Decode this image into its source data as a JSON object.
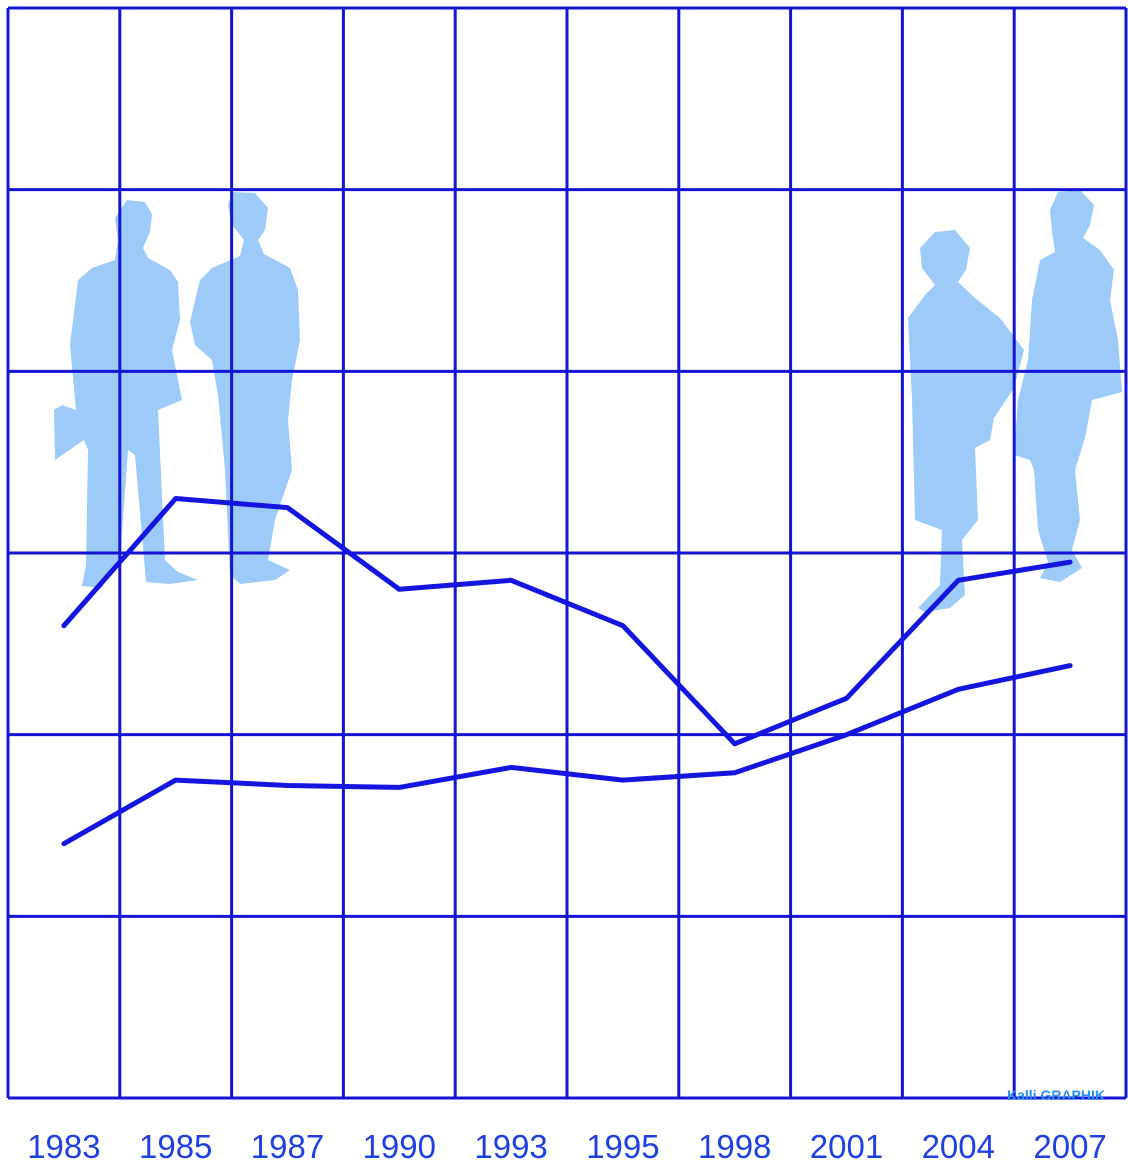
{
  "chart_data": {
    "type": "line",
    "title": "",
    "xlabel": "",
    "ylabel": "",
    "categories": [
      "1983",
      "1985",
      "1987",
      "1990",
      "1993",
      "1995",
      "1998",
      "2001",
      "2004",
      "2007"
    ],
    "ylim": [
      0,
      6
    ],
    "grid": true,
    "series": [
      {
        "values": [
          2.6,
          3.3,
          3.25,
          2.8,
          2.85,
          2.6,
          1.95,
          2.2,
          2.85,
          2.95
        ]
      },
      {
        "values": [
          1.4,
          1.75,
          1.72,
          1.71,
          1.82,
          1.75,
          1.79,
          2.0,
          2.25,
          2.38
        ]
      }
    ],
    "credit": "Kalli GRAPHIK",
    "colors": {
      "grid": "#1414d4",
      "series": "#1515e0",
      "silhouettes": "#9ccbfa",
      "ticks": "#1f3fe0",
      "credit": "#2a8ff0"
    }
  }
}
